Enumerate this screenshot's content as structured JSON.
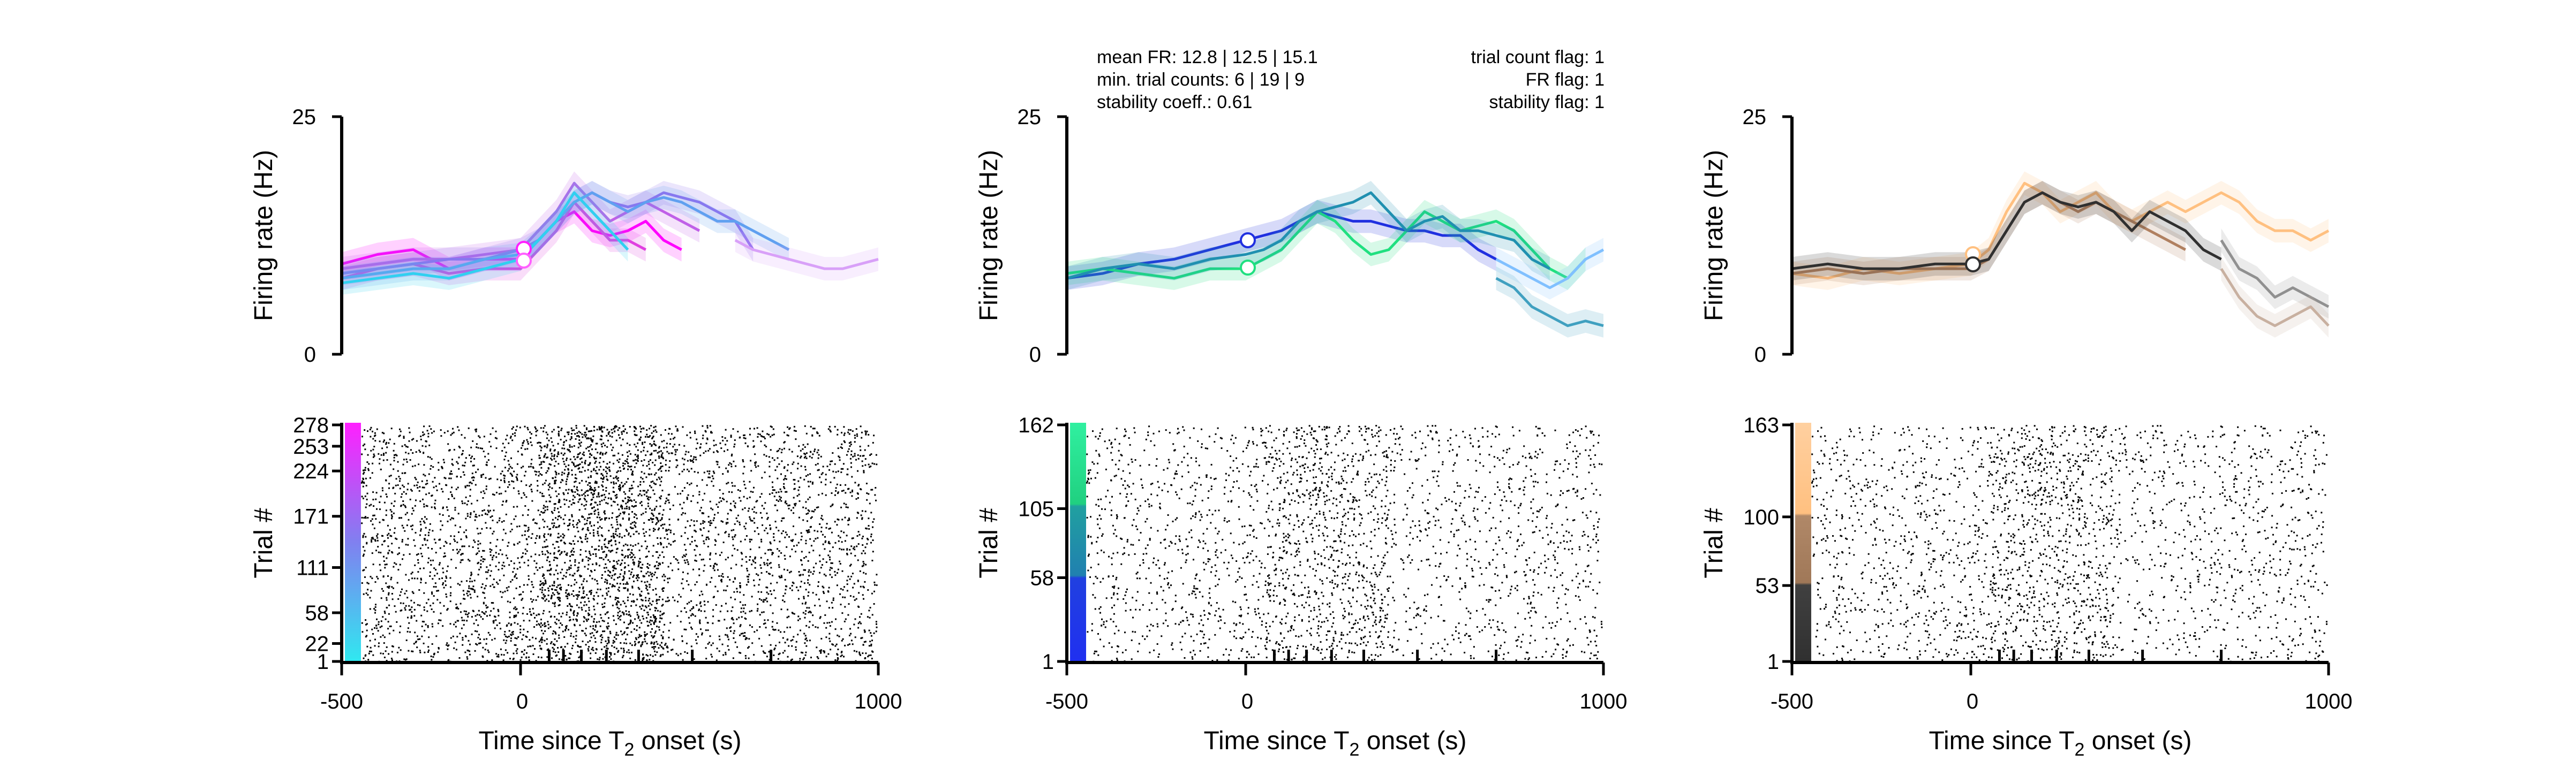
{
  "chart_data": [
    {
      "type": "line",
      "panel": "left-psth",
      "ylabel": "Firing rate (Hz)",
      "ylim": [
        0,
        25
      ],
      "yticks": [
        "0",
        "25"
      ],
      "xlim": [
        -500,
        1000
      ],
      "series": [
        {
          "color": "#ff00ff",
          "x": [
            -500,
            -400,
            -300,
            -200,
            -100,
            0,
            50,
            100,
            150,
            200,
            250,
            300,
            350,
            400,
            450
          ],
          "y": [
            9.5,
            10.5,
            11,
            9,
            10,
            10,
            12,
            14,
            15,
            13,
            12.5,
            13,
            14,
            12,
            11
          ]
        },
        {
          "color": "#e040e0",
          "x": [
            -500,
            -400,
            -300,
            -200,
            -100,
            0,
            50,
            100,
            150,
            200,
            250,
            300,
            350
          ],
          "y": [
            8,
            9,
            9.5,
            8.5,
            9,
            9,
            11,
            13,
            16,
            14,
            12,
            12,
            11
          ]
        },
        {
          "color": "#c060e8",
          "x": [
            -500,
            -400,
            -300,
            -200,
            -100,
            0,
            50,
            100,
            150,
            200,
            250,
            300,
            350,
            400,
            450,
            500
          ],
          "y": [
            9,
            9.5,
            10,
            10,
            10.5,
            11,
            13,
            15,
            18,
            16,
            14,
            15,
            16,
            15,
            14,
            13
          ]
        },
        {
          "color": "#9070f0",
          "x": [
            -500,
            -400,
            -300,
            -200,
            -100,
            0,
            50,
            100,
            150,
            200,
            250,
            300,
            350,
            400,
            450,
            500,
            550,
            600,
            650
          ],
          "y": [
            8.5,
            9,
            9.5,
            10,
            10,
            11,
            12,
            14,
            16,
            17,
            16,
            15.5,
            16,
            17,
            16.5,
            16,
            15,
            14,
            11
          ]
        },
        {
          "color": "#60a0f0",
          "x": [
            -500,
            -400,
            -300,
            -200,
            -100,
            0,
            50,
            100,
            150,
            200,
            250,
            300,
            350,
            400,
            450,
            500,
            550,
            600,
            650,
            700,
            750
          ],
          "y": [
            8,
            8.5,
            9,
            9,
            10,
            10.5,
            12,
            14,
            16,
            17,
            16,
            15,
            16,
            16.5,
            16,
            15,
            14,
            14,
            13,
            12,
            11
          ]
        },
        {
          "color": "#30d0f0",
          "x": [
            -500,
            -400,
            -300,
            -200,
            -100,
            0,
            50,
            100,
            150,
            200,
            250,
            300
          ],
          "y": [
            7.5,
            8,
            8.5,
            8,
            9,
            10,
            12,
            14,
            17,
            15,
            13,
            11
          ]
        },
        {
          "color": "#d8a0f8",
          "x": [
            600,
            650,
            700,
            750,
            800,
            850,
            900,
            950,
            1000
          ],
          "y": [
            12,
            11,
            10.5,
            10,
            9.5,
            9,
            9,
            9.5,
            10
          ]
        }
      ]
    },
    {
      "type": "line",
      "panel": "middle-psth",
      "ylabel": "Firing rate (Hz)",
      "ylim": [
        0,
        25
      ],
      "yticks": [
        "0",
        "25"
      ],
      "xlim": [
        -500,
        1000
      ],
      "annotations": {
        "left": [
          "mean FR: 12.8 | 12.5 | 15.1",
          "min. trial counts: 6 | 19 | 9",
          "stability coeff.: 0.61"
        ],
        "right": [
          "trial count flag: 1",
          "FR flag: 1",
          "stability flag: 1"
        ]
      },
      "series": [
        {
          "color": "#2030e0",
          "x": [
            -500,
            -400,
            -300,
            -200,
            -100,
            0,
            50,
            100,
            150,
            200,
            250,
            300,
            350,
            400,
            450,
            500,
            550,
            600,
            650,
            700
          ],
          "y": [
            8,
            8.5,
            9.5,
            10,
            11,
            12,
            12.5,
            13,
            14,
            15,
            14.5,
            14,
            14,
            13.5,
            13,
            13,
            12.5,
            12.5,
            11,
            10
          ]
        },
        {
          "color": "#20e080",
          "x": [
            -500,
            -400,
            -300,
            -200,
            -100,
            0,
            50,
            100,
            150,
            200,
            250,
            300,
            350,
            400,
            450,
            500,
            550,
            600,
            650,
            700,
            750,
            800,
            850,
            900,
            950
          ],
          "y": [
            8.5,
            9,
            8.5,
            8,
            9,
            9,
            10,
            11,
            13,
            15,
            14,
            12,
            10.5,
            11,
            13,
            15,
            14,
            13,
            13.5,
            14,
            13,
            11,
            9,
            8,
            10
          ]
        },
        {
          "color": "#2090b0",
          "x": [
            -500,
            -400,
            -300,
            -200,
            -100,
            0,
            50,
            100,
            150,
            200,
            250,
            300,
            350,
            400,
            450,
            500,
            550,
            600,
            650,
            700,
            750,
            800,
            850
          ],
          "y": [
            8,
            9,
            9.5,
            9,
            10,
            10.5,
            11,
            12,
            14,
            15,
            15.5,
            16,
            17,
            15,
            13,
            14,
            14.5,
            13,
            13,
            12.5,
            12,
            10,
            9
          ]
        },
        {
          "color": "#80c0ff",
          "x": [
            700,
            750,
            800,
            850,
            900,
            950,
            1000
          ],
          "y": [
            10,
            9,
            8,
            7,
            8,
            10,
            11
          ]
        },
        {
          "color": "#40a0c0",
          "x": [
            700,
            750,
            800,
            850,
            900,
            950,
            1000
          ],
          "y": [
            8,
            7,
            5,
            4,
            3,
            3.5,
            3
          ]
        }
      ]
    },
    {
      "type": "line",
      "panel": "right-psth",
      "ylabel": "Firing rate (Hz)",
      "ylim": [
        0,
        25
      ],
      "yticks": [
        "0",
        "25"
      ],
      "xlim": [
        -500,
        1000
      ],
      "series": [
        {
          "color": "#ffc080",
          "x": [
            -500,
            -400,
            -300,
            -200,
            -100,
            0,
            50,
            100,
            150,
            200,
            250,
            300,
            350,
            400,
            450,
            500,
            550,
            600,
            650,
            700,
            750,
            800,
            850,
            900,
            950,
            1000
          ],
          "y": [
            8.5,
            8,
            9,
            8.5,
            9,
            9.5,
            11,
            15,
            18,
            17,
            15,
            16,
            17,
            15,
            14,
            15,
            16,
            15,
            16,
            17,
            16,
            14,
            13,
            13,
            12,
            13
          ]
        },
        {
          "color": "#b08060",
          "x": [
            -500,
            -400,
            -300,
            -200,
            -100,
            0,
            50,
            100,
            150,
            200,
            250,
            300,
            350,
            400,
            450,
            500,
            550,
            600
          ],
          "y": [
            8.5,
            9,
            8.5,
            9,
            9,
            9,
            10,
            13,
            16,
            17,
            16,
            15,
            16,
            15,
            14,
            13,
            12,
            11
          ]
        },
        {
          "color": "#303030",
          "x": [
            -500,
            -400,
            -300,
            -200,
            -100,
            0,
            50,
            100,
            150,
            200,
            250,
            300,
            350,
            400,
            450,
            500,
            550,
            600,
            650,
            700
          ],
          "y": [
            9,
            9.5,
            9,
            9,
            9.5,
            9.5,
            10,
            13,
            16,
            17,
            16,
            15.5,
            16,
            15,
            13,
            15,
            14,
            13,
            11,
            10
          ]
        },
        {
          "color": "#909090",
          "x": [
            700,
            750,
            800,
            850,
            900,
            950,
            1000
          ],
          "y": [
            12,
            9,
            8,
            6,
            7,
            6,
            5
          ]
        },
        {
          "color": "#c8b0a0",
          "x": [
            700,
            750,
            800,
            850,
            900,
            950,
            1000
          ],
          "y": [
            9,
            6,
            4,
            3,
            4,
            5,
            3
          ]
        }
      ]
    },
    {
      "type": "scatter",
      "panel": "left-raster",
      "ylabel": "Trial #",
      "yticks": [
        "1",
        "22",
        "58",
        "111",
        "171",
        "224",
        "253",
        "278"
      ],
      "ylim": [
        1,
        278
      ],
      "xlim": [
        -500,
        1000
      ],
      "xticks": [
        "-500",
        "0",
        "1000"
      ],
      "xlabel": "Time since T",
      "xlabel_sub": "2",
      "xlabel_end": " onset (s)"
    },
    {
      "type": "scatter",
      "panel": "middle-raster",
      "ylabel": "Trial #",
      "yticks": [
        "1",
        "58",
        "105",
        "162"
      ],
      "ylim": [
        1,
        162
      ],
      "xlim": [
        -500,
        1000
      ],
      "xticks": [
        "-500",
        "0",
        "1000"
      ],
      "xlabel": "Time since T",
      "xlabel_sub": "2",
      "xlabel_end": " onset (s)"
    },
    {
      "type": "scatter",
      "panel": "right-raster",
      "ylabel": "Trial #",
      "yticks": [
        "1",
        "53",
        "100",
        "163"
      ],
      "ylim": [
        1,
        163
      ],
      "xlim": [
        -500,
        1000
      ],
      "xticks": [
        "-500",
        "0",
        "1000"
      ],
      "xlabel": "Time since T",
      "xlabel_sub": "2",
      "xlabel_end": " onset (s)"
    }
  ]
}
